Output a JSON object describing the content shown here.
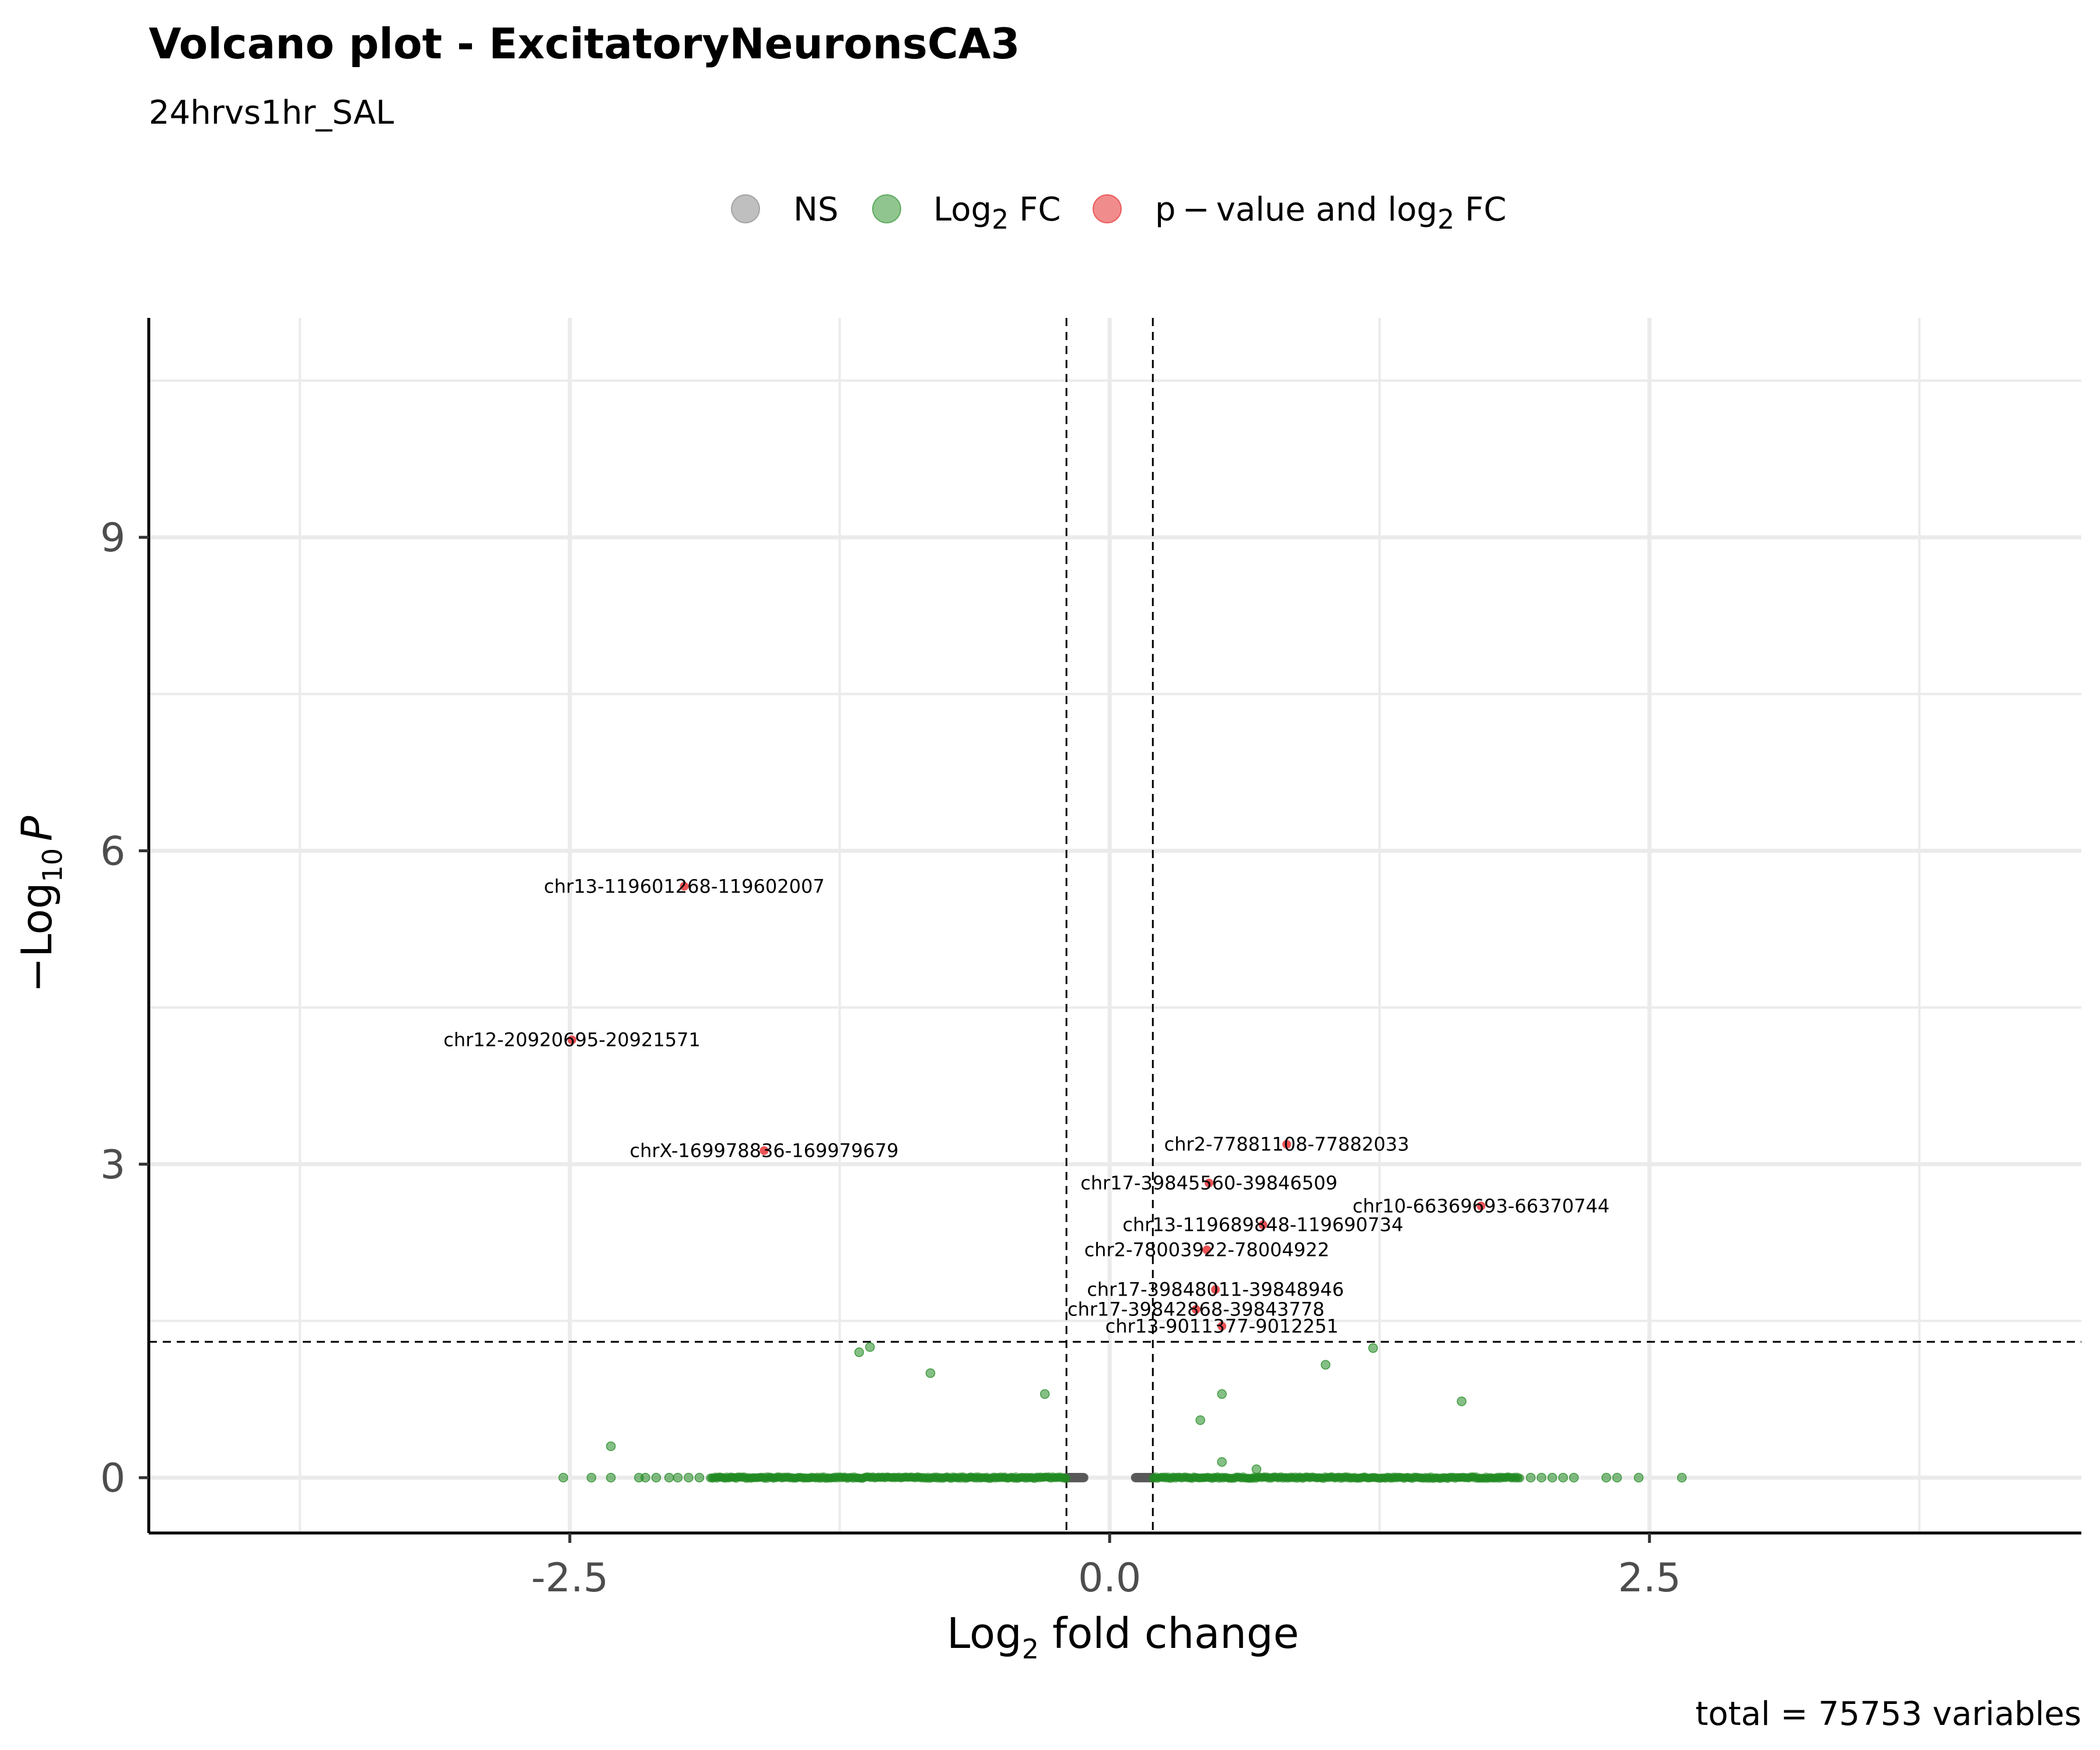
{
  "chart_data": {
    "type": "scatter",
    "title": "Volcano plot - ExcitatoryNeuronsCA3",
    "subtitle": "24hrvs1hr_SAL",
    "xlabel": {
      "main": "Log",
      "sub": "2",
      "rest": " fold change"
    },
    "ylabel": {
      "prefix": "−Log",
      "sub": "10",
      "italic": "P"
    },
    "caption": "total = 75753 variables",
    "xlim": [
      -4.45,
      4.5
    ],
    "ylim": [
      -0.53,
      11.1
    ],
    "x_ticks": [
      -2.5,
      0.0,
      2.5
    ],
    "x_tick_labels": [
      "-2.5",
      "0.0",
      "2.5"
    ],
    "x_minor_gridlines": [
      -3.75,
      -1.25,
      1.25,
      3.75
    ],
    "y_ticks": [
      0,
      3,
      6,
      9
    ],
    "y_tick_labels": [
      "0",
      "3",
      "6",
      "9"
    ],
    "y_minor_gridlines": [
      1.5,
      4.5,
      7.5,
      10.5
    ],
    "grid": true,
    "thresholds": {
      "fc_cutoff": [
        -0.2,
        0.2
      ],
      "p_cutoff_neglog10": 1.3
    },
    "legend": {
      "position": "top",
      "items": [
        {
          "key": "NS",
          "label": "NS",
          "color": "#808080"
        },
        {
          "key": "FC",
          "label_main": "Log",
          "label_sub": "2",
          "label_rest": " FC",
          "color": "#228b22"
        },
        {
          "key": "PFC",
          "label_main": "p − value and log",
          "label_sub": "2",
          "label_rest": " FC",
          "color": "#e41a1c"
        }
      ]
    },
    "series": [
      {
        "name": "NS",
        "color": "#595959",
        "x_ranges": [
          [
            -0.2,
            -0.12
          ],
          [
            0.12,
            0.2
          ]
        ],
        "y": 0
      },
      {
        "name": "Log2 FC",
        "color": "#228b22",
        "dense_x_ranges": [
          [
            -1.85,
            -0.2
          ],
          [
            0.2,
            1.9
          ]
        ],
        "scattered": [
          [
            -2.53,
            0
          ],
          [
            -2.4,
            0
          ],
          [
            -2.31,
            0
          ],
          [
            -2.18,
            0
          ],
          [
            -2.15,
            0
          ],
          [
            -2.1,
            0
          ],
          [
            -2.04,
            0
          ],
          [
            -2.0,
            0
          ],
          [
            -1.95,
            0
          ],
          [
            -1.9,
            0
          ],
          [
            1.95,
            0
          ],
          [
            2.0,
            0
          ],
          [
            2.05,
            0
          ],
          [
            2.1,
            0
          ],
          [
            2.15,
            0
          ],
          [
            2.3,
            0
          ],
          [
            2.35,
            0
          ],
          [
            2.45,
            0
          ],
          [
            2.65,
            0
          ],
          [
            -2.31,
            0.3
          ],
          [
            -1.16,
            1.2
          ],
          [
            -1.11,
            1.25
          ],
          [
            -0.83,
            1.0
          ],
          [
            -0.3,
            0.8
          ],
          [
            0.42,
            0.55
          ],
          [
            0.52,
            0.8
          ],
          [
            0.52,
            0.15
          ],
          [
            0.68,
            0.08
          ],
          [
            1.0,
            1.08
          ],
          [
            1.22,
            1.24
          ],
          [
            1.63,
            0.73
          ]
        ]
      },
      {
        "name": "p-value and log2 FC",
        "color": "#e41a1c",
        "points": [
          {
            "x": -1.97,
            "y": 5.66,
            "label": "chr13-119601268-119602007"
          },
          {
            "x": -2.49,
            "y": 4.19,
            "label": "chr12-20920695-20921571"
          },
          {
            "x": -1.6,
            "y": 3.13,
            "label": "chrX-169978836-169979679"
          },
          {
            "x": 0.82,
            "y": 3.19,
            "label": "chr2-77881108-77882033"
          },
          {
            "x": 0.46,
            "y": 2.82,
            "label": "chr17-39845560-39846509"
          },
          {
            "x": 1.72,
            "y": 2.6,
            "label": "chr10-66369693-66370744"
          },
          {
            "x": 0.71,
            "y": 2.42,
            "label": "chr13-119689848-119690734"
          },
          {
            "x": 0.45,
            "y": 2.18,
            "label": "chr2-78003922-78004922"
          },
          {
            "x": 0.49,
            "y": 1.8,
            "label": "chr17-39848011-39848946"
          },
          {
            "x": 0.4,
            "y": 1.61,
            "label": "chr17-39842868-39843778"
          },
          {
            "x": 0.52,
            "y": 1.45,
            "label": "chr13-9011377-9012251"
          }
        ]
      }
    ]
  }
}
